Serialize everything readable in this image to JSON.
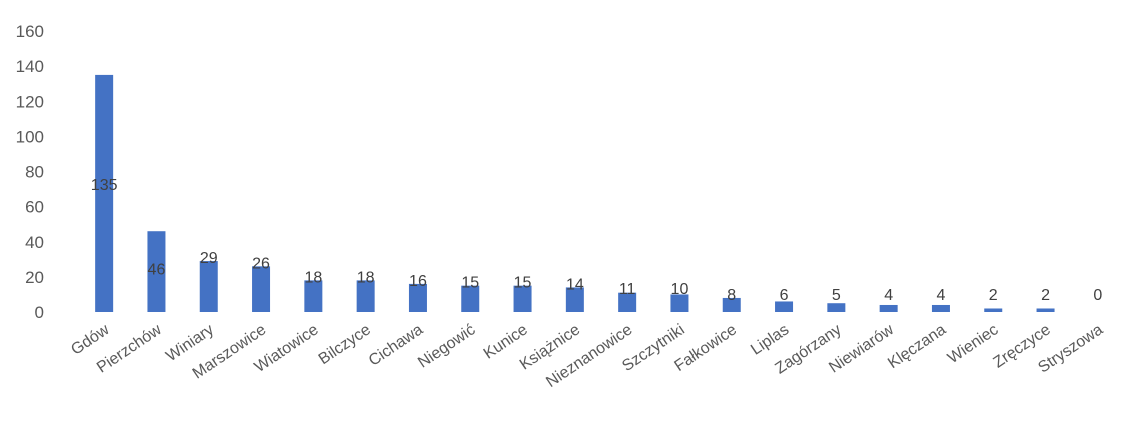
{
  "chart_data": {
    "type": "bar",
    "categories": [
      "Gdów",
      "Pierzchów",
      "Winiary",
      "Marszowice",
      "Wiatowice",
      "Bilczyce",
      "Cichawa",
      "Niegowić",
      "Kunice",
      "Książnice",
      "Nieznanowice",
      "Szczytniki",
      "Fałkowice",
      "Liplas",
      "Zagórzany",
      "Niewiarów",
      "Klęczana",
      "Wieniec",
      "Zręczyce",
      "Stryszowa"
    ],
    "values": [
      135,
      46,
      29,
      26,
      18,
      18,
      16,
      15,
      15,
      14,
      11,
      10,
      8,
      6,
      5,
      4,
      4,
      2,
      2,
      0
    ],
    "y_ticks": [
      0,
      20,
      40,
      60,
      80,
      100,
      120,
      140,
      160
    ],
    "ylim": [
      0,
      160
    ],
    "title": "",
    "xlabel": "",
    "ylabel": "",
    "grid": false,
    "legend": "none",
    "bar_color": "#4472C4"
  }
}
